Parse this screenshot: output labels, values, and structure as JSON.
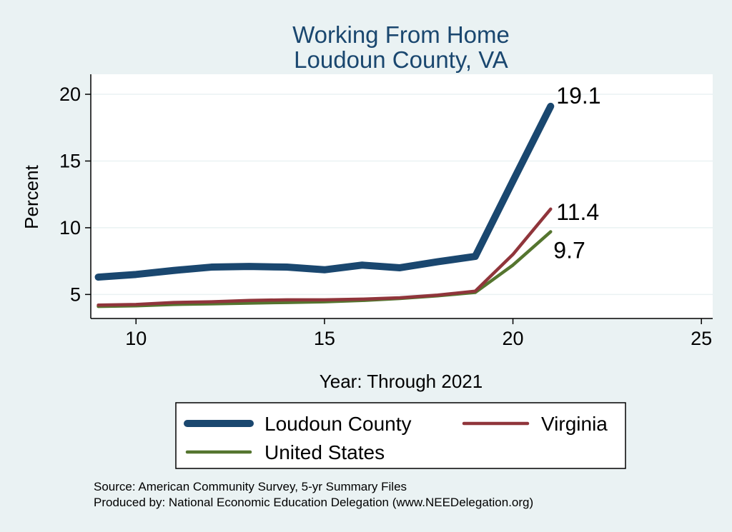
{
  "chart_data": {
    "type": "line",
    "title": "Working From Home",
    "subtitle": "Loudoun County, VA",
    "xlabel": "Year: Through 2021",
    "ylabel": "Percent",
    "xlim": [
      8.8,
      25.3
    ],
    "ylim": [
      3.2,
      21.5
    ],
    "x_ticks": [
      10,
      15,
      20,
      25
    ],
    "y_ticks": [
      5,
      10,
      15,
      20
    ],
    "grid": true,
    "legend_position": "bottom",
    "x": [
      9,
      10,
      11,
      12,
      13,
      14,
      15,
      16,
      17,
      18,
      19,
      20,
      21
    ],
    "series": [
      {
        "name": "Loudoun County",
        "color": "#1a476f",
        "values": [
          6.3,
          6.5,
          6.8,
          7.05,
          7.1,
          7.05,
          6.85,
          7.2,
          7.0,
          7.45,
          7.85,
          13.5,
          19.1
        ],
        "end_label": "19.1"
      },
      {
        "name": "Virginia",
        "color": "#90353b",
        "values": [
          4.2,
          4.25,
          4.4,
          4.45,
          4.55,
          4.6,
          4.6,
          4.65,
          4.75,
          4.95,
          5.25,
          8.0,
          11.4
        ],
        "end_label": "11.4"
      },
      {
        "name": "United States",
        "color": "#55752f",
        "values": [
          4.1,
          4.15,
          4.25,
          4.3,
          4.35,
          4.4,
          4.45,
          4.55,
          4.7,
          4.9,
          5.15,
          7.2,
          9.7
        ],
        "end_label": "9.7"
      }
    ],
    "notes": [
      "Source: American Community Survey, 5-yr Summary Files",
      "Produced by: National Economic Education Delegation (www.NEEDelegation.org)"
    ]
  }
}
